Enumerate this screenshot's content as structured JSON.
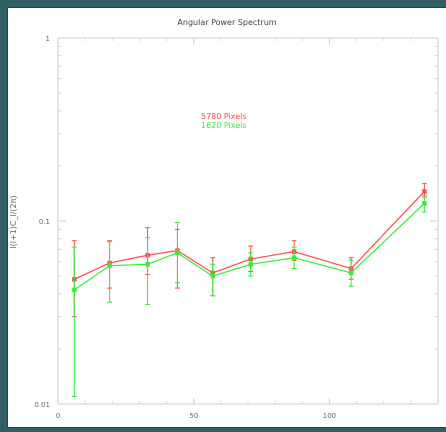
{
  "chart_data": {
    "type": "line",
    "title": "Angular Power Spectrum",
    "xlabel": "",
    "ylabel": "l(l+1)C_l/(2π)",
    "x_scale": "linear",
    "y_scale": "log",
    "xlim": [
      0,
      140
    ],
    "ylim": [
      0.01,
      1
    ],
    "x_ticks": [
      {
        "value": 0,
        "label": "0"
      },
      {
        "value": 50,
        "label": "50"
      },
      {
        "value": 100,
        "label": "100"
      }
    ],
    "y_ticks": [
      {
        "value": 0.01,
        "label": "0.01"
      },
      {
        "value": 0.1,
        "label": "0.1"
      },
      {
        "value": 1,
        "label": "1"
      }
    ],
    "legend_placement": "upper-center",
    "series": [
      {
        "name": "5780 Pixels",
        "color": "#ff4a4a",
        "points": [
          {
            "x": 6,
            "y": 0.048,
            "err_low": 0.03,
            "err_high": 0.078
          },
          {
            "x": 19,
            "y": 0.059,
            "err_low": 0.043,
            "err_high": 0.078
          },
          {
            "x": 33,
            "y": 0.065,
            "err_low": 0.051,
            "err_high": 0.092
          },
          {
            "x": 44,
            "y": 0.069,
            "err_low": 0.043,
            "err_high": 0.09
          },
          {
            "x": 57,
            "y": 0.052,
            "err_low": 0.039,
            "err_high": 0.063
          },
          {
            "x": 71,
            "y": 0.062,
            "err_low": 0.053,
            "err_high": 0.073
          },
          {
            "x": 87,
            "y": 0.068,
            "err_low": 0.061,
            "err_high": 0.078
          },
          {
            "x": 108,
            "y": 0.055,
            "err_low": 0.048,
            "err_high": 0.063
          },
          {
            "x": 135,
            "y": 0.145,
            "err_low": 0.135,
            "err_high": 0.16
          }
        ]
      },
      {
        "name": "1620 Pixels",
        "color": "#33ee33",
        "points": [
          {
            "x": 6,
            "y": 0.042,
            "err_low": 0.011,
            "err_high": 0.072
          },
          {
            "x": 19,
            "y": 0.057,
            "err_low": 0.036,
            "err_high": 0.077
          },
          {
            "x": 33,
            "y": 0.058,
            "err_low": 0.035,
            "err_high": 0.081
          },
          {
            "x": 44,
            "y": 0.067,
            "err_low": 0.046,
            "err_high": 0.098
          },
          {
            "x": 57,
            "y": 0.05,
            "err_low": 0.039,
            "err_high": 0.058
          },
          {
            "x": 71,
            "y": 0.058,
            "err_low": 0.05,
            "err_high": 0.067
          },
          {
            "x": 87,
            "y": 0.063,
            "err_low": 0.055,
            "err_high": 0.072
          },
          {
            "x": 108,
            "y": 0.052,
            "err_low": 0.044,
            "err_high": 0.061
          },
          {
            "x": 135,
            "y": 0.125,
            "err_low": 0.112,
            "err_high": 0.138
          }
        ]
      }
    ]
  }
}
